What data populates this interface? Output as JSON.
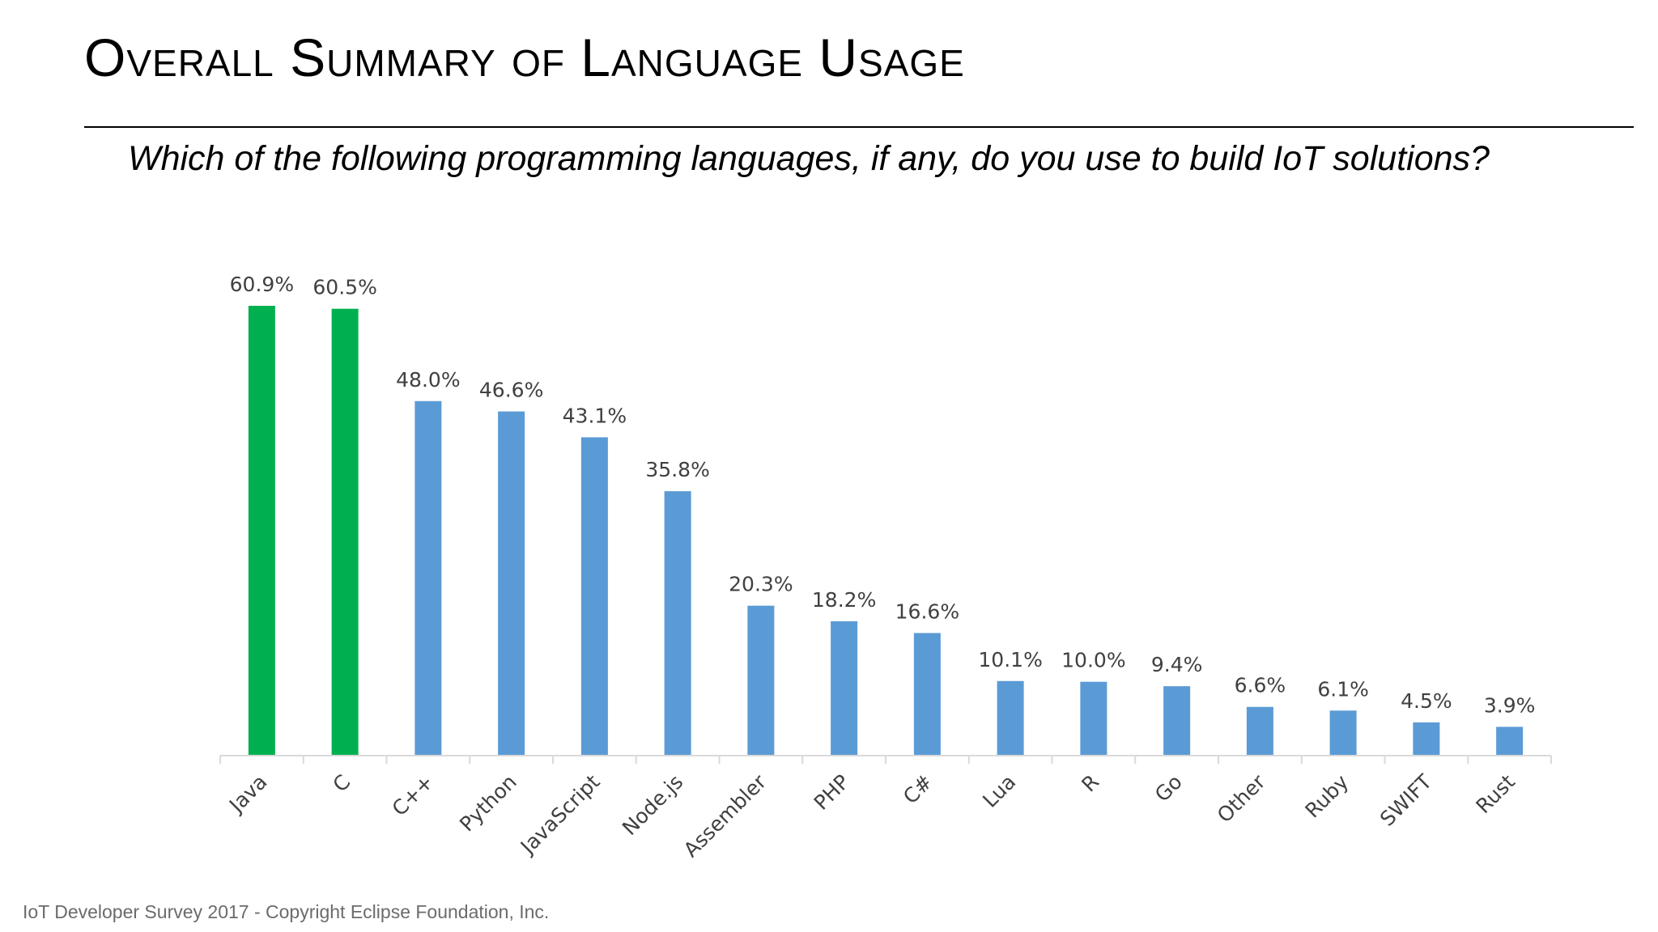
{
  "slide": {
    "title": "Overall Summary of Language Usage",
    "question": "Which of the following programming languages, if any, do you use to build IoT solutions?",
    "footer": "IoT Developer Survey 2017 - Copyright Eclipse Foundation, Inc."
  },
  "colors": {
    "highlight": "#00b050",
    "bar": "#5b9bd5",
    "axis": "#d9d9d9",
    "label": "#404040"
  },
  "chart_data": {
    "type": "bar",
    "title": "",
    "xlabel": "",
    "ylabel": "",
    "ylim": [
      0,
      60.9
    ],
    "grid": false,
    "legend": "none",
    "categories": [
      "Java",
      "C",
      "C++",
      "Python",
      "JavaScript",
      "Node.js",
      "Assembler",
      "PHP",
      "C#",
      "Lua",
      "R",
      "Go",
      "Other",
      "Ruby",
      "SWIFT",
      "Rust"
    ],
    "values": [
      60.9,
      60.5,
      48.0,
      46.6,
      43.1,
      35.8,
      20.3,
      18.2,
      16.6,
      10.1,
      10.0,
      9.4,
      6.6,
      6.1,
      4.5,
      3.9
    ],
    "value_labels": [
      "60.9%",
      "60.5%",
      "48.0%",
      "46.6%",
      "43.1%",
      "35.8%",
      "20.3%",
      "18.2%",
      "16.6%",
      "10.1%",
      "10.0%",
      "9.4%",
      "6.6%",
      "6.1%",
      "4.5%",
      "3.9%"
    ],
    "highlighted": [
      true,
      true,
      false,
      false,
      false,
      false,
      false,
      false,
      false,
      false,
      false,
      false,
      false,
      false,
      false,
      false
    ]
  }
}
